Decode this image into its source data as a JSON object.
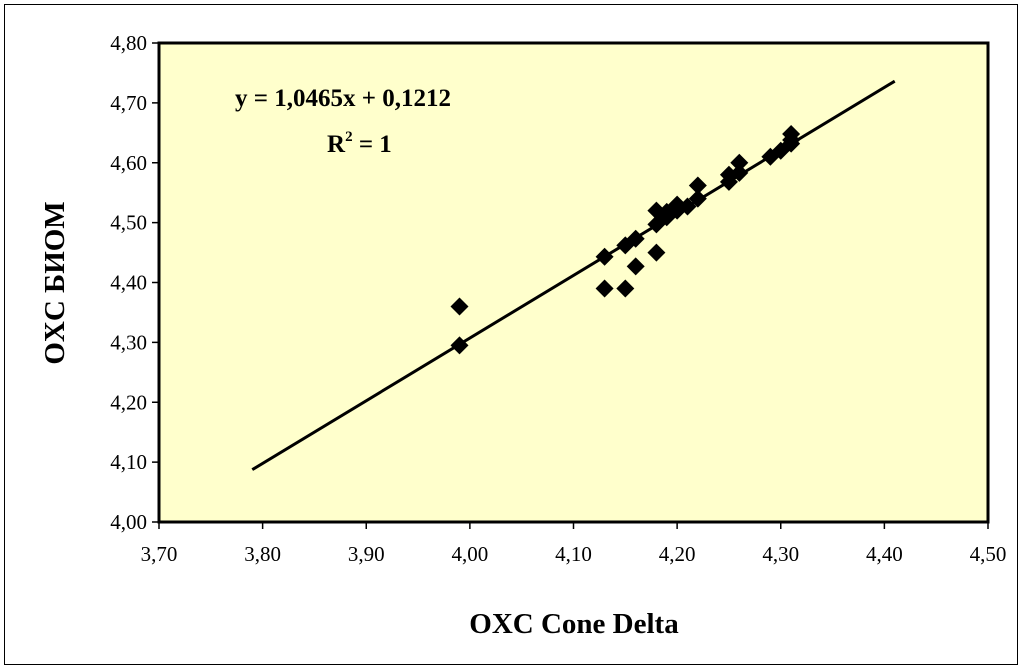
{
  "chart_data": {
    "type": "scatter",
    "title": "",
    "xlabel": "OXC Cone Delta",
    "ylabel": "OXC БИОМ",
    "xlim": [
      3.7,
      4.5
    ],
    "ylim": [
      4.0,
      4.8
    ],
    "x_ticks": [
      "3,70",
      "3,80",
      "3,90",
      "4,00",
      "4,10",
      "4,20",
      "4,30",
      "4,40",
      "4,50"
    ],
    "y_ticks": [
      "4,00",
      "4,10",
      "4,20",
      "4,30",
      "4,40",
      "4,50",
      "4,60",
      "4,70",
      "4,80"
    ],
    "grid": false,
    "legend": "none",
    "plot_background": "#FFFFCC",
    "marker": "diamond",
    "marker_color": "#000000",
    "points": [
      {
        "x": 3.99,
        "y": 4.36
      },
      {
        "x": 3.99,
        "y": 4.295
      },
      {
        "x": 4.13,
        "y": 4.443
      },
      {
        "x": 4.13,
        "y": 4.39
      },
      {
        "x": 4.15,
        "y": 4.39
      },
      {
        "x": 4.15,
        "y": 4.462
      },
      {
        "x": 4.16,
        "y": 4.473
      },
      {
        "x": 4.16,
        "y": 4.427
      },
      {
        "x": 4.18,
        "y": 4.45
      },
      {
        "x": 4.18,
        "y": 4.52
      },
      {
        "x": 4.18,
        "y": 4.497
      },
      {
        "x": 4.19,
        "y": 4.509
      },
      {
        "x": 4.19,
        "y": 4.518
      },
      {
        "x": 4.2,
        "y": 4.52
      },
      {
        "x": 4.2,
        "y": 4.53
      },
      {
        "x": 4.21,
        "y": 4.527
      },
      {
        "x": 4.22,
        "y": 4.54
      },
      {
        "x": 4.22,
        "y": 4.562
      },
      {
        "x": 4.25,
        "y": 4.568
      },
      {
        "x": 4.25,
        "y": 4.58
      },
      {
        "x": 4.26,
        "y": 4.583
      },
      {
        "x": 4.26,
        "y": 4.6
      },
      {
        "x": 4.29,
        "y": 4.61
      },
      {
        "x": 4.3,
        "y": 4.62
      },
      {
        "x": 4.31,
        "y": 4.632
      },
      {
        "x": 4.31,
        "y": 4.648
      },
      {
        "x": 4.31,
        "y": 4.638
      }
    ],
    "trendline": {
      "x0": 3.79,
      "x1": 4.41,
      "slope": 1.0465,
      "intercept": 0.1212,
      "color": "#000000"
    },
    "annotations": {
      "equation": "y = 1,0465x + 0,1212",
      "r2_prefix": "R",
      "r2_sup": "2",
      "r2_suffix": " = 1"
    }
  }
}
